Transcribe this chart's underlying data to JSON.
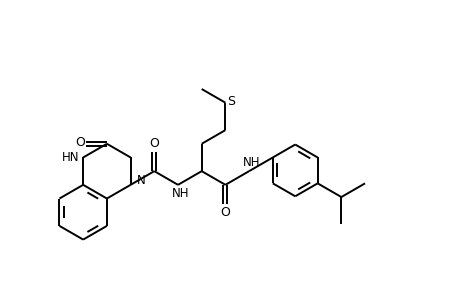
{
  "background": "#ffffff",
  "line_color": "#000000",
  "lw": 1.4,
  "figsize": [
    4.6,
    3.0
  ],
  "dpi": 100,
  "xlim": [
    0.0,
    9.2
  ],
  "ylim": [
    0.0,
    6.0
  ]
}
